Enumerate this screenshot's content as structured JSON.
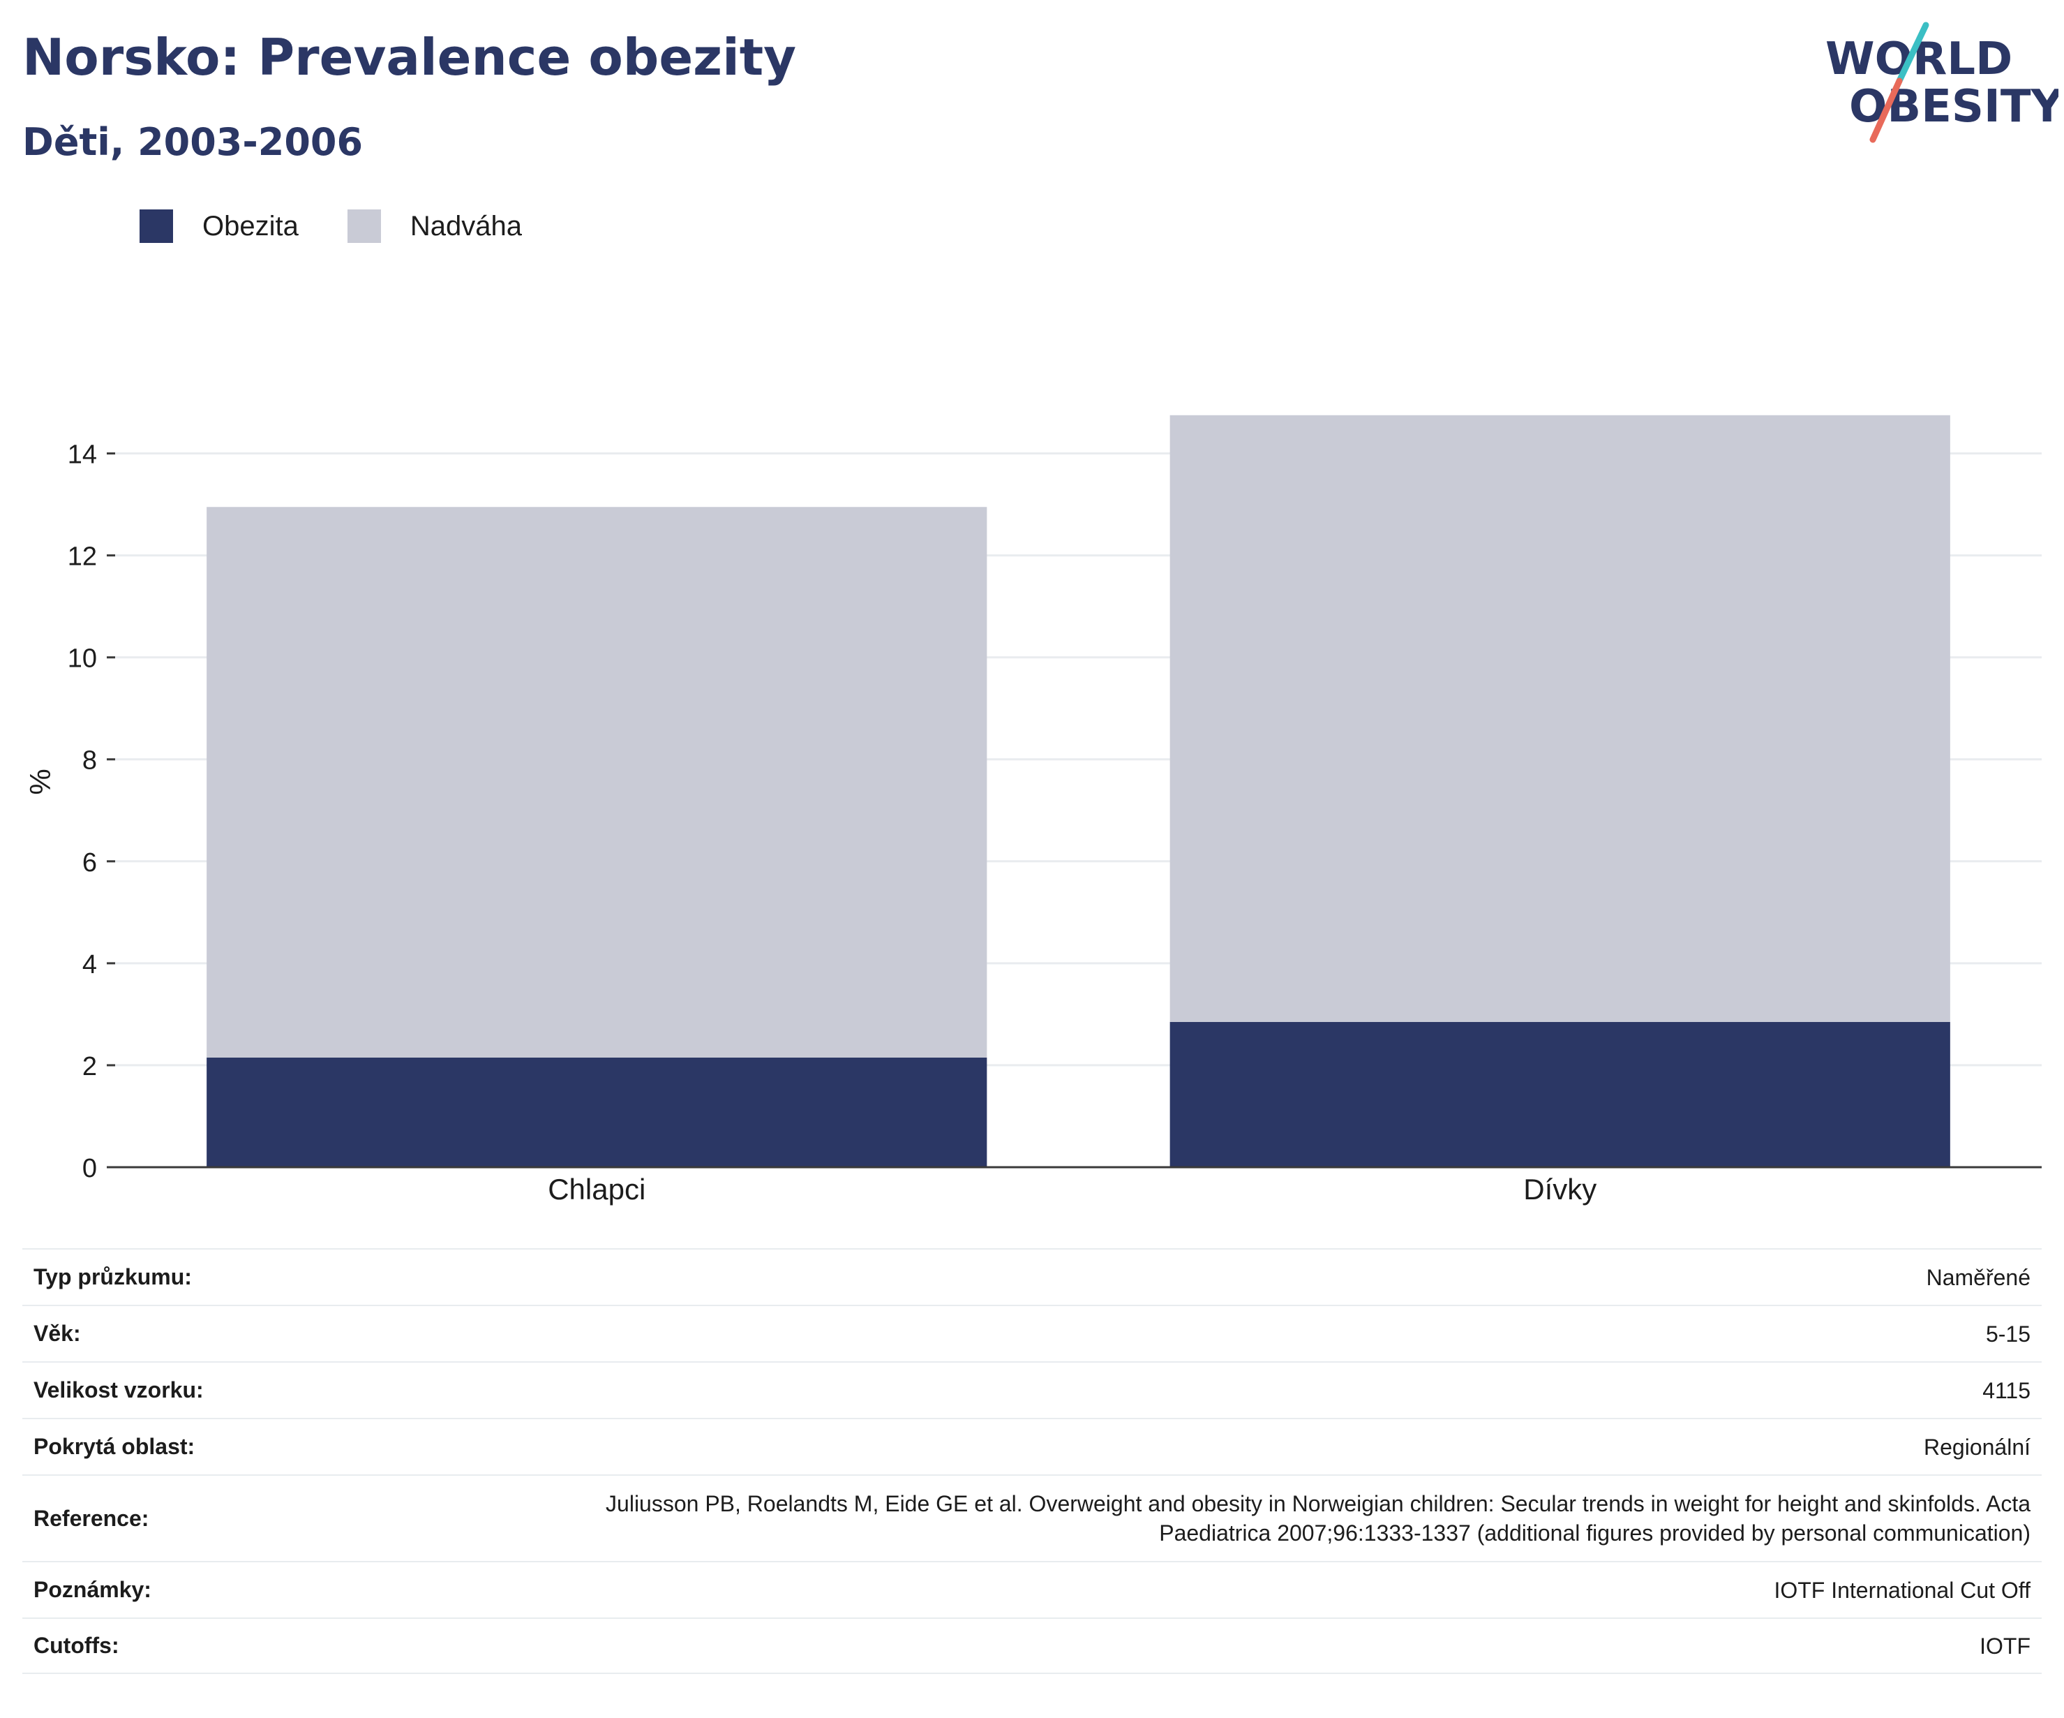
{
  "header": {
    "title": "Norsko: Prevalence obezity",
    "subtitle": "Děti, 2003-2006"
  },
  "logo": {
    "line1": "WORLD",
    "line2": "OBESITY",
    "colors": {
      "text": "#2b3765",
      "slash_top": "#3bbfc4",
      "slash_bottom": "#e86a5a"
    }
  },
  "legend": [
    {
      "label": "Obezita",
      "color": "#2b3765"
    },
    {
      "label": "Nadváha",
      "color": "#c9cbd6"
    }
  ],
  "chart_data": {
    "type": "bar",
    "stacked": true,
    "categories": [
      "Chlapci",
      "Dívky"
    ],
    "series": [
      {
        "name": "Obezita",
        "values": [
          2.15,
          2.85
        ],
        "color": "#2b3765"
      },
      {
        "name": "Nadváha",
        "values": [
          10.8,
          11.9
        ],
        "color": "#c9cbd6"
      }
    ],
    "ylabel": "%",
    "ylim": [
      0,
      15.5
    ],
    "yticks": [
      0,
      2,
      4,
      6,
      8,
      10,
      12,
      14
    ],
    "grid": true,
    "legend_position": "top-left"
  },
  "info": {
    "rows": [
      {
        "label": "Typ průzkumu:",
        "value": "Naměřené"
      },
      {
        "label": "Věk:",
        "value": "5-15"
      },
      {
        "label": "Velikost vzorku:",
        "value": "4115"
      },
      {
        "label": "Pokrytá oblast:",
        "value": "Regionální"
      },
      {
        "label": "Reference:",
        "value": "Juliusson PB, Roelandts M, Eide GE et al. Overweight and obesity in Norweigian children: Secular trends in weight for height and skinfolds. Acta Paediatrica 2007;96:1333-1337 (additional figures provided by personal communication)"
      },
      {
        "label": "Poznámky:",
        "value": "IOTF International Cut Off"
      },
      {
        "label": "Cutoffs:",
        "value": "IOTF"
      }
    ]
  }
}
